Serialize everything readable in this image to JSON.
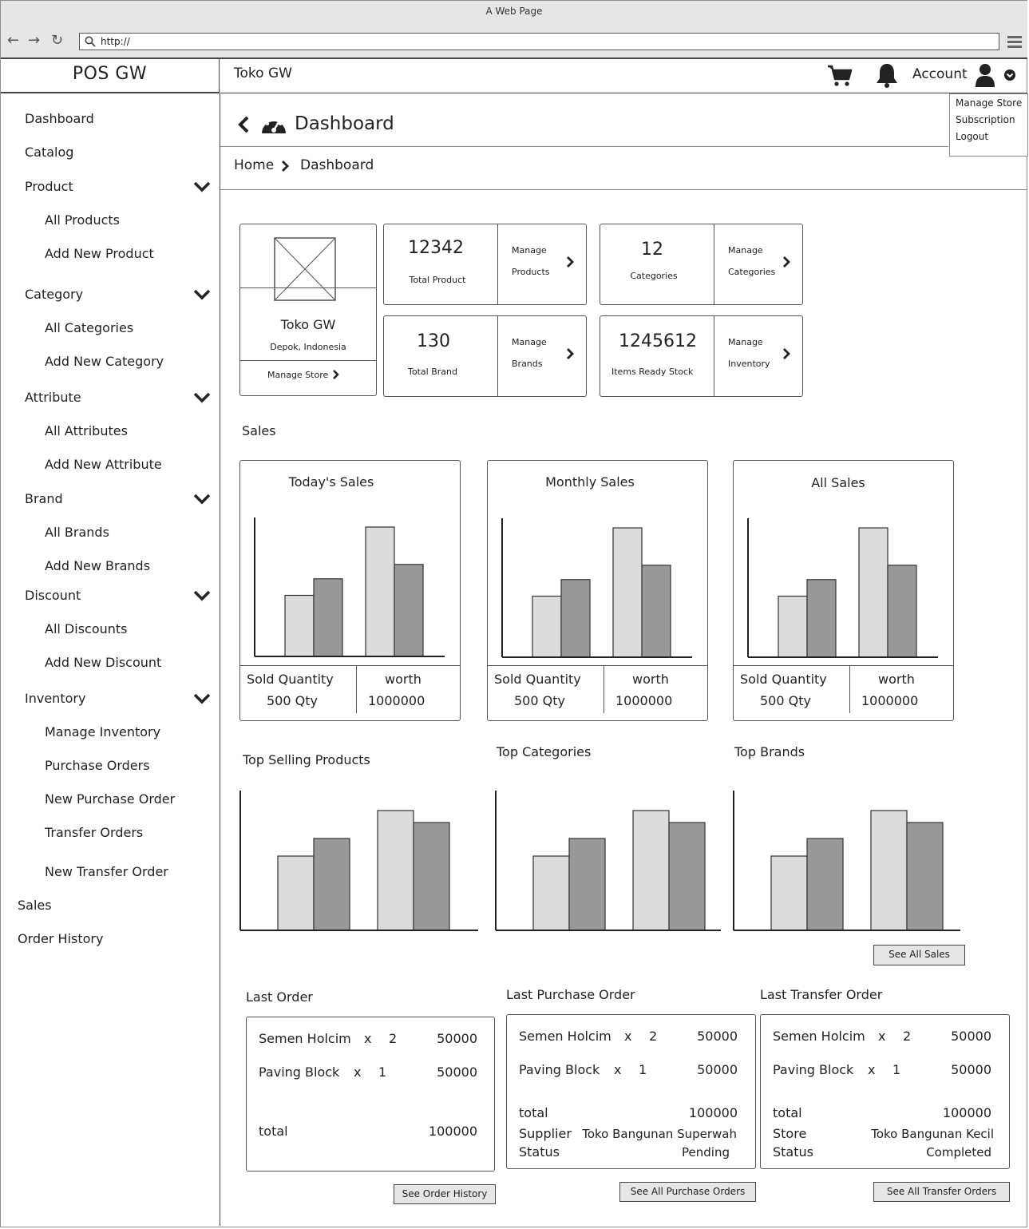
{
  "window": {
    "title": "A Web Page",
    "url": "http://"
  },
  "app": {
    "name": "POS GW",
    "store": "Toko GW"
  },
  "header": {
    "account_label": "Account"
  },
  "account_menu": [
    "Manage Store",
    "Subscription",
    "Logout"
  ],
  "sidebar": {
    "items": [
      {
        "label": "Dashboard"
      },
      {
        "label": "Catalog"
      },
      {
        "label": "Product",
        "children": [
          "All Products",
          "Add New Product"
        ]
      },
      {
        "label": "Category",
        "children": [
          "All Categories",
          "Add New Category"
        ]
      },
      {
        "label": "Attribute",
        "children": [
          "All Attributes",
          "Add New Attribute"
        ]
      },
      {
        "label": "Brand",
        "children": [
          "All Brands",
          "Add New Brands"
        ]
      },
      {
        "label": "Discount",
        "children": [
          "All Discounts",
          "Add New Discount"
        ]
      },
      {
        "label": "Inventory",
        "children": [
          "Manage Inventory",
          "Purchase Orders",
          "New Purchase Order",
          "Transfer Orders",
          "New Transfer Order"
        ]
      },
      {
        "label": "Sales"
      },
      {
        "label": "Order History"
      }
    ]
  },
  "page": {
    "title": "Dashboard",
    "breadcrumb": [
      "Home",
      "Dashboard"
    ]
  },
  "store_card": {
    "name": "Toko GW",
    "location": "Depok, Indonesia",
    "link": "Manage Store"
  },
  "stats": [
    {
      "value": "12342",
      "label": "Total Product",
      "link1": "Manage",
      "link2": "Products"
    },
    {
      "value": "12",
      "label": "Categories",
      "link1": "Manage",
      "link2": "Categories"
    },
    {
      "value": "130",
      "label": "Total Brand",
      "link1": "Manage",
      "link2": "Brands"
    },
    {
      "value": "1245612",
      "label": "Items Ready Stock",
      "link1": "Manage",
      "link2": "Inventory"
    }
  ],
  "sales": {
    "title": "Sales",
    "cards": [
      {
        "title": "Today's Sales",
        "qty_label": "Sold Quantity",
        "qty": "500 Qty",
        "worth_label": "worth",
        "worth": "1000000"
      },
      {
        "title": "Monthly Sales",
        "qty_label": "Sold Quantity",
        "qty": "500 Qty",
        "worth_label": "worth",
        "worth": "1000000"
      },
      {
        "title": "All Sales",
        "qty_label": "Sold Quantity",
        "qty": "500 Qty",
        "worth_label": "worth",
        "worth": "1000000"
      }
    ],
    "see_all": "See All Sales"
  },
  "top": {
    "products": "Top Selling Products",
    "categories": "Top Categories",
    "brands": "Top Brands"
  },
  "chart_data": [
    {
      "type": "bar",
      "title": "Today's Sales",
      "series": [
        {
          "values": [
            85,
            180
          ]
        },
        {
          "values": [
            108,
            128
          ]
        }
      ]
    },
    {
      "type": "bar",
      "title": "Monthly Sales",
      "series": [
        {
          "values": [
            85,
            180
          ]
        },
        {
          "values": [
            108,
            128
          ]
        }
      ]
    },
    {
      "type": "bar",
      "title": "All Sales",
      "series": [
        {
          "values": [
            85,
            180
          ]
        },
        {
          "values": [
            108,
            128
          ]
        }
      ]
    },
    {
      "type": "bar",
      "title": "Top Selling Products",
      "series": [
        {
          "values": [
            93,
            150
          ]
        },
        {
          "values": [
            115,
            135
          ]
        }
      ]
    },
    {
      "type": "bar",
      "title": "Top Categories",
      "series": [
        {
          "values": [
            93,
            150
          ]
        },
        {
          "values": [
            115,
            135
          ]
        }
      ]
    },
    {
      "type": "bar",
      "title": "Top Brands",
      "series": [
        {
          "values": [
            93,
            150
          ]
        },
        {
          "values": [
            115,
            135
          ]
        }
      ]
    }
  ],
  "last_order": {
    "title": "Last Order",
    "items": [
      {
        "name": "Semen Holcim",
        "x": "x",
        "qty": "2",
        "price": "50000"
      },
      {
        "name": "Paving Block",
        "x": "x",
        "qty": "1",
        "price": "50000"
      }
    ],
    "total_label": "total",
    "total": "100000",
    "button": "See Order History"
  },
  "last_purchase": {
    "title": "Last Purchase Order",
    "items": [
      {
        "name": "Semen Holcim",
        "x": "x",
        "qty": "2",
        "price": "50000"
      },
      {
        "name": "Paving Block",
        "x": "x",
        "qty": "1",
        "price": "50000"
      }
    ],
    "total_label": "total",
    "total": "100000",
    "party_label": "Supplier",
    "party": "Toko Bangunan Superwah",
    "status_label": "Status",
    "status": "Pending",
    "button": "See All Purchase Orders"
  },
  "last_transfer": {
    "title": "Last Transfer Order",
    "items": [
      {
        "name": "Semen Holcim",
        "x": "x",
        "qty": "2",
        "price": "50000"
      },
      {
        "name": "Paving Block",
        "x": "x",
        "qty": "1",
        "price": "50000"
      }
    ],
    "total_label": "total",
    "total": "100000",
    "party_label": "Store",
    "party": "Toko Bangunan Kecil",
    "status_label": "Status",
    "status": "Completed",
    "button": "See All Transfer Orders"
  },
  "colors": {
    "bar_light": "#dcdcdc",
    "bar_dark": "#999999",
    "chrome": "#e6e6e6"
  },
  "icons": [
    "back-icon",
    "forward-icon",
    "reload-icon",
    "search-icon",
    "hamburger-icon",
    "cart-icon",
    "bell-icon",
    "user-icon",
    "chevron-down-icon",
    "chevron-left-icon",
    "dashboard-gauge-icon",
    "chevron-right-icon",
    "image-placeholder-icon"
  ]
}
